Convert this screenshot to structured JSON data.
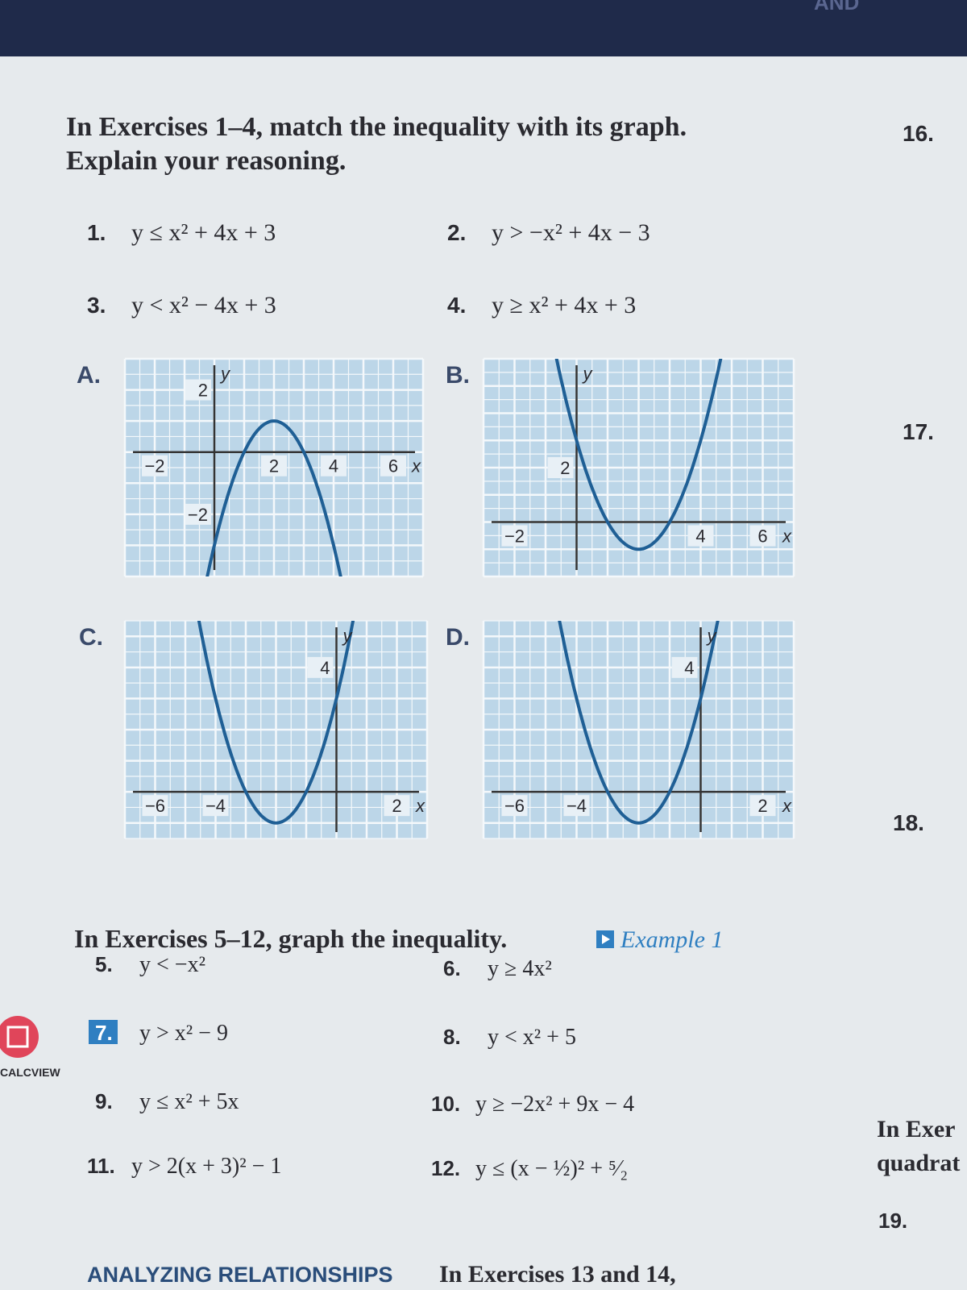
{
  "header": {
    "fragment": "AND"
  },
  "section1": {
    "instructions": [
      "In Exercises 1–4, match the inequality with its graph.",
      "Explain your reasoning."
    ],
    "items": [
      {
        "number": "1.",
        "text": "y ≤ x² + 4x + 3"
      },
      {
        "number": "2.",
        "text": "y > −x² + 4x − 3"
      },
      {
        "number": "3.",
        "text": "y < x² − 4x + 3"
      },
      {
        "number": "4.",
        "text": "y ≥ x² + 4x + 3"
      }
    ]
  },
  "graphs": [
    {
      "label": "A.",
      "x_ticks": [
        "−2",
        "2",
        "4",
        "6"
      ],
      "y_ticks": [
        "2",
        "−2"
      ],
      "x_axis": "x",
      "y_axis": "y"
    },
    {
      "label": "B.",
      "x_ticks": [
        "−2",
        "4",
        "6"
      ],
      "y_ticks": [
        "2"
      ],
      "x_axis": "x",
      "y_axis": "y"
    },
    {
      "label": "C.",
      "x_ticks": [
        "−6",
        "−4",
        "2"
      ],
      "y_ticks": [
        "4"
      ],
      "x_axis": "x",
      "y_axis": "y"
    },
    {
      "label": "D.",
      "x_ticks": [
        "−6",
        "−4",
        "2"
      ],
      "y_ticks": [
        "4"
      ],
      "x_axis": "x",
      "y_axis": "y"
    }
  ],
  "section2": {
    "instructions": "In Exercises 5–12, graph the inequality.",
    "link": "Example 1",
    "items": [
      {
        "number": "5.",
        "text": "y < −x²"
      },
      {
        "number": "6.",
        "text": "y ≥ 4x²"
      },
      {
        "number": "7.",
        "text": "y > x² − 9"
      },
      {
        "number": "8.",
        "text": "y < x² + 5"
      },
      {
        "number": "9.",
        "text": "y ≤ x² + 5x"
      },
      {
        "number": "10.",
        "text": "y ≥ −2x² + 9x − 4"
      },
      {
        "number": "11.",
        "text": "y > 2(x + 3)² − 1"
      },
      {
        "number": "12.",
        "text": "y ≤ (x − ½)² + ⁵⁄₂"
      }
    ]
  },
  "footer": {
    "heading": "ANALYZING RELATIONSHIPS",
    "text": "In Exercises 13 and 14,"
  },
  "sidebar": {
    "calcview": "CALCVIEW",
    "numbers": [
      "16.",
      "17.",
      "18.",
      "19."
    ],
    "fragments": [
      "In Exer",
      "quadrat"
    ]
  }
}
